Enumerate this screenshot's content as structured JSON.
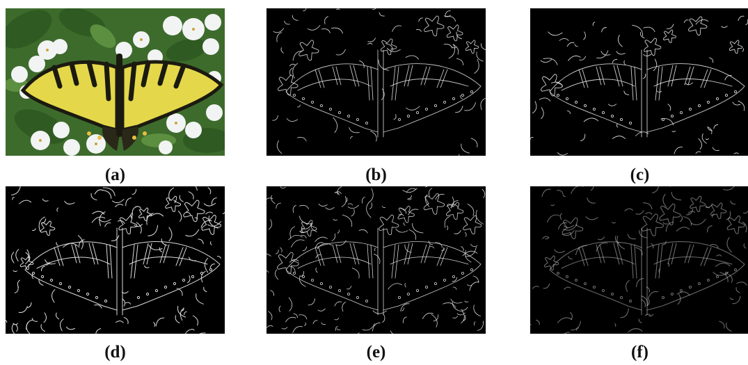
{
  "captions": [
    "(a)",
    "(b)",
    "(c)",
    "(d)",
    "(e)",
    "(f)"
  ],
  "panels": [
    {
      "id": "a",
      "content": "butterfly-photo"
    },
    {
      "id": "b",
      "content": "edge-map"
    },
    {
      "id": "c",
      "content": "edge-map"
    },
    {
      "id": "d",
      "content": "edge-map"
    },
    {
      "id": "e",
      "content": "edge-map"
    },
    {
      "id": "f",
      "content": "edge-map"
    }
  ],
  "colors": {
    "background": "#ffffff",
    "edge_bg": "#000000",
    "wing": "#e4d84a",
    "wing_stripe": "#1b1a10",
    "leaf": "#3d6b2c",
    "flower": "#f2f4f4"
  }
}
